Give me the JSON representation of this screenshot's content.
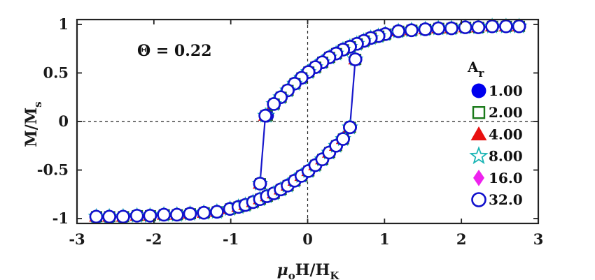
{
  "chart_data": {
    "type": "line",
    "annotation": "Θ = 0.22",
    "xlabel": {
      "main": "μ",
      "sub1": "o",
      "mid": "H/H",
      "sub2": "K"
    },
    "ylabel": {
      "main": "M/M",
      "sub": "s"
    },
    "xlim": [
      -3,
      3
    ],
    "ylim": [
      -1.05,
      1.05
    ],
    "xticks": [
      -3,
      -2,
      -1,
      0,
      1,
      2,
      3
    ],
    "xtick_labels": [
      "-3",
      "-2",
      "-1",
      "0",
      "1",
      "2",
      "3"
    ],
    "yticks": [
      -1,
      -0.5,
      0,
      0.5,
      1
    ],
    "ytick_labels": [
      "-1",
      "-0.5",
      "0",
      "0.5",
      "1"
    ],
    "reference_lines": {
      "x": 0,
      "y": 0,
      "style": "dashed"
    },
    "legend": {
      "title": {
        "main": "A",
        "sub": "r"
      },
      "placement": "right",
      "entries": [
        {
          "label": "1.00",
          "marker": "filled-circle",
          "color": "#0000ee"
        },
        {
          "label": "2.00",
          "marker": "open-square",
          "color": "#1a7a1a"
        },
        {
          "label": "4.00",
          "marker": "filled-triangle",
          "color": "#e81010"
        },
        {
          "label": "8.00",
          "marker": "open-star",
          "color": "#18b4b4"
        },
        {
          "label": "16.0",
          "marker": "filled-diamond",
          "color": "#ee22ee"
        },
        {
          "label": "32.0",
          "marker": "open-circle",
          "color": "#1010cc"
        }
      ]
    },
    "line_color": "#1818cc",
    "branches": [
      {
        "name": "descending",
        "x": [
          2.75,
          2.58,
          2.4,
          2.22,
          2.05,
          1.87,
          1.7,
          1.53,
          1.35,
          1.18,
          1.01,
          0.92,
          0.82,
          0.73,
          0.64,
          0.55,
          0.46,
          0.37,
          0.28,
          0.19,
          0.1,
          0.01,
          -0.08,
          -0.17,
          -0.26,
          -0.35,
          -0.44,
          -0.53,
          -0.55,
          -0.62
        ],
        "y": [
          0.98,
          0.98,
          0.98,
          0.97,
          0.97,
          0.96,
          0.96,
          0.95,
          0.94,
          0.93,
          0.9,
          0.88,
          0.86,
          0.83,
          0.8,
          0.77,
          0.74,
          0.7,
          0.66,
          0.61,
          0.56,
          0.51,
          0.45,
          0.39,
          0.32,
          0.25,
          0.18,
          0.06,
          0.06,
          -0.64
        ]
      },
      {
        "name": "ascending",
        "x": [
          -2.75,
          -2.58,
          -2.4,
          -2.22,
          -2.05,
          -1.87,
          -1.7,
          -1.53,
          -1.35,
          -1.18,
          -1.01,
          -0.9,
          -0.81,
          -0.71,
          -0.62,
          -0.53,
          -0.44,
          -0.35,
          -0.26,
          -0.17,
          -0.08,
          0.01,
          0.1,
          0.19,
          0.28,
          0.37,
          0.46,
          0.55,
          0.55,
          0.62
        ],
        "y": [
          -0.98,
          -0.98,
          -0.98,
          -0.97,
          -0.97,
          -0.96,
          -0.96,
          -0.95,
          -0.94,
          -0.93,
          -0.9,
          -0.88,
          -0.86,
          -0.83,
          -0.8,
          -0.77,
          -0.74,
          -0.7,
          -0.66,
          -0.61,
          -0.56,
          -0.51,
          -0.45,
          -0.39,
          -0.32,
          -0.25,
          -0.18,
          -0.06,
          -0.06,
          0.64
        ]
      }
    ]
  }
}
